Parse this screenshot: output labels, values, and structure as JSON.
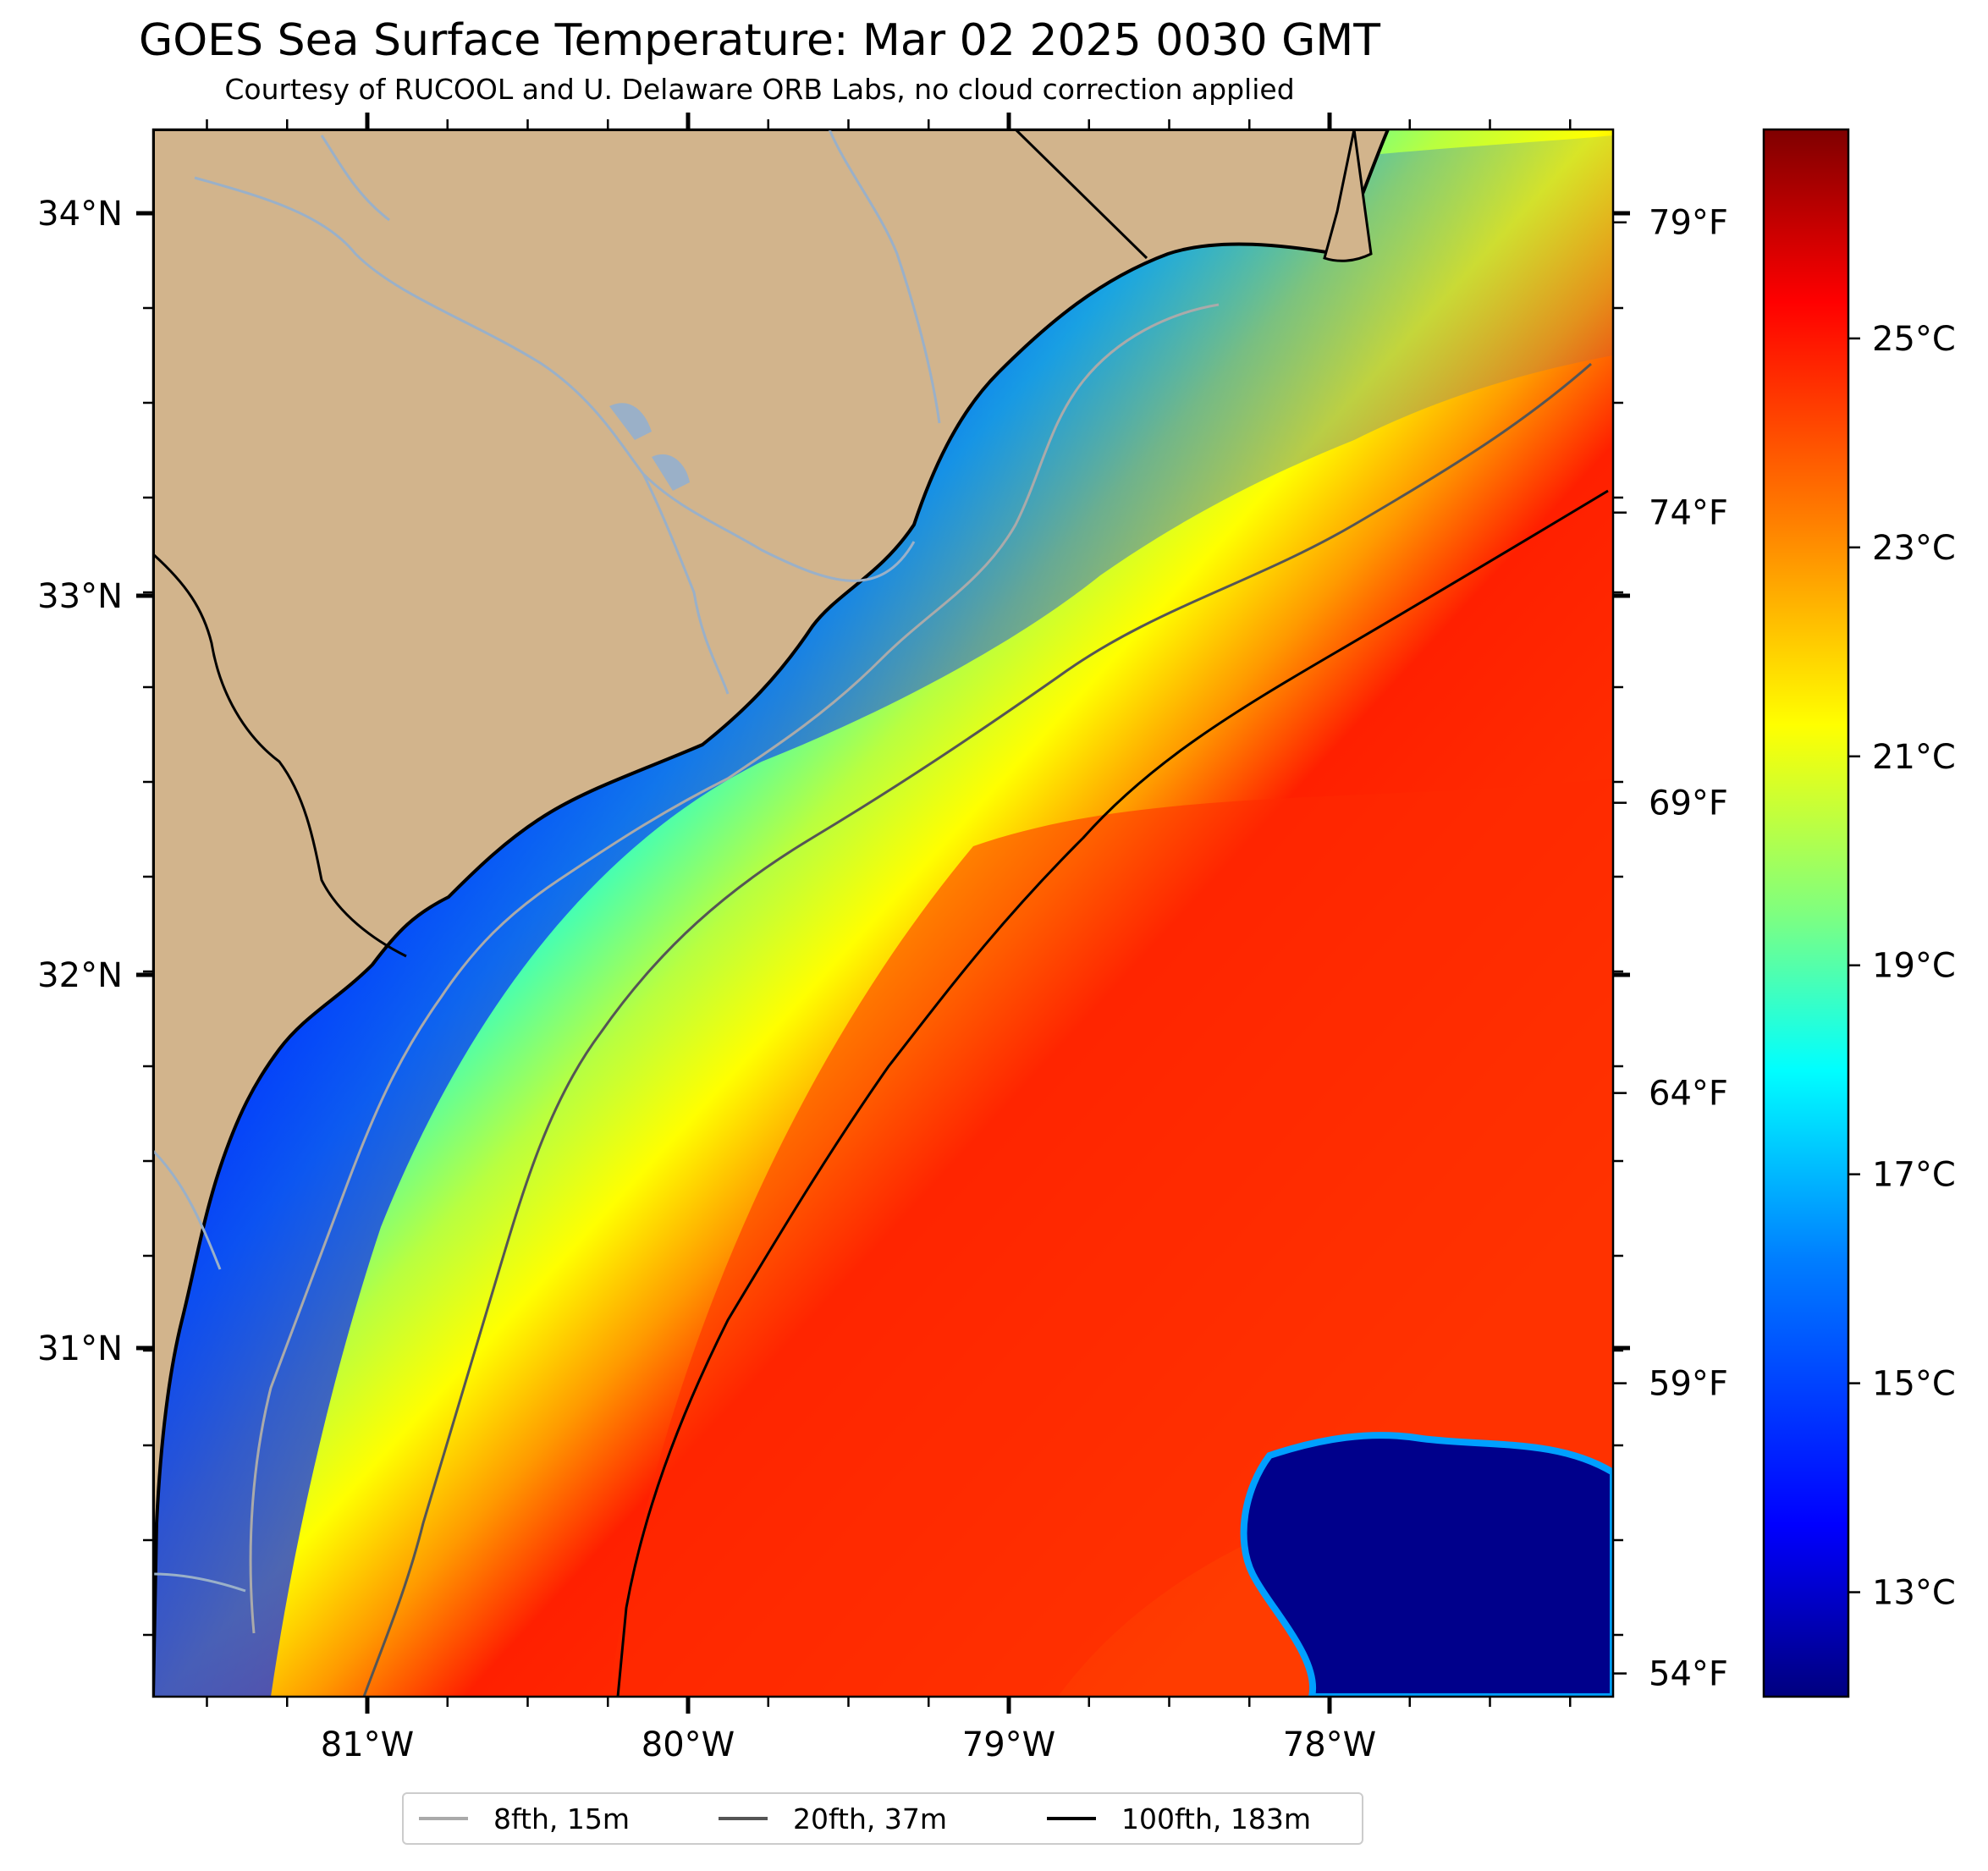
{
  "title": "GOES Sea Surface Temperature: Mar 02 2025 0030 GMT",
  "subtitle": "Courtesy of RUCOOL and U. Delaware ORB Labs, no cloud correction applied",
  "map": {
    "lon_labels": [
      "81°W",
      "80°W",
      "79°W",
      "78°W"
    ],
    "lat_labels": [
      "34°N",
      "33°N",
      "32°N",
      "31°N"
    ],
    "land_color": "#d2b48c",
    "coastline_color": "#000000",
    "river_color": "#9ab0c8",
    "cloud_patch_color": "#00008b"
  },
  "colorbar": {
    "celsius_labels": [
      "25°C",
      "23°C",
      "21°C",
      "19°C",
      "17°C",
      "15°C",
      "13°C"
    ],
    "celsius_values": [
      25,
      23,
      21,
      19,
      17,
      15,
      13
    ],
    "fahrenheit_labels": [
      "79°F",
      "74°F",
      "69°F",
      "64°F",
      "59°F",
      "54°F"
    ],
    "fahrenheit_values": [
      79,
      74,
      69,
      64,
      59,
      54
    ],
    "range_celsius": [
      12.0,
      27.0
    ],
    "colormap": "jet",
    "colormap_stops": [
      "#00007f",
      "#0000ff",
      "#007fff",
      "#00ffff",
      "#7fff7f",
      "#ffff00",
      "#ff7f00",
      "#ff0000",
      "#7f0000"
    ]
  },
  "legend": {
    "items": [
      {
        "label": "8fth, 15m",
        "color": "#aaaaaa"
      },
      {
        "label": "20fth, 37m",
        "color": "#555555"
      },
      {
        "label": "100fth, 183m",
        "color": "#000000"
      }
    ]
  }
}
